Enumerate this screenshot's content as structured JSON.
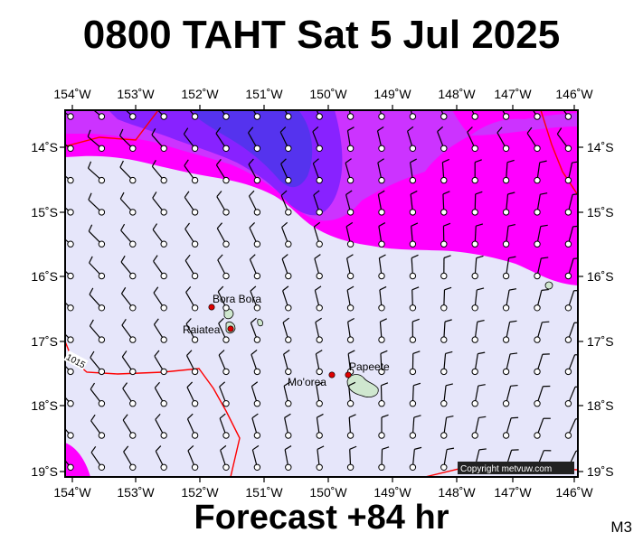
{
  "header": {
    "title": "0800 TAHT Sat 5 Jul 2025"
  },
  "footer": {
    "forecast": "Forecast +84 hr",
    "model": "M3"
  },
  "map": {
    "lon_labels": [
      "154˚W",
      "153˚W",
      "152˚W",
      "151˚W",
      "150˚W",
      "149˚W",
      "148˚W",
      "147˚W",
      "146˚W"
    ],
    "lat_labels": [
      "14˚S",
      "15˚S",
      "16˚S",
      "17˚S",
      "18˚S",
      "19˚S"
    ],
    "colors": {
      "background": "#e6e6fa",
      "shade_light": "#ff00ff",
      "shade_mid": "#cc33ff",
      "shade_high": "#8822ff",
      "shade_max": "#5533ee",
      "isobar": "#ff0000",
      "island": "#cfe7cf"
    },
    "places": [
      {
        "name": "Bora Bora",
        "lon": -151.75,
        "lat": -16.5
      },
      {
        "name": "Raiatea",
        "lon": -151.45,
        "lat": -16.83
      },
      {
        "name": "Mo'orea",
        "lon": -149.83,
        "lat": -17.53
      },
      {
        "name": "Papeete",
        "lon": -149.57,
        "lat": -17.54
      }
    ],
    "isobar_label": "1015",
    "copyright": "Copyright metvuw.com"
  }
}
